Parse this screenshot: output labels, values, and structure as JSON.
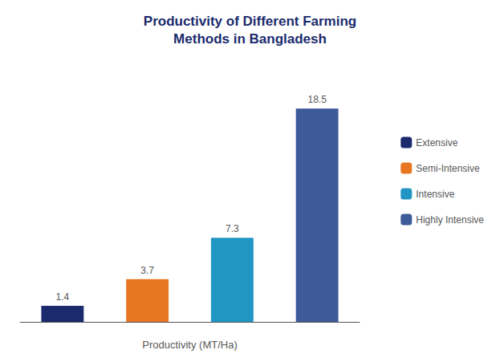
{
  "chart_data": {
    "type": "bar",
    "title": "Productivity of Different Farming\nMethods in Bangladesh",
    "categories": [
      "Extensive",
      "Semi-Intensive",
      "Intensive",
      "Highly Intensive"
    ],
    "values": [
      1.4,
      3.7,
      7.3,
      18.5
    ],
    "colors": [
      "#1a2a6c",
      "#e87722",
      "#2196c4",
      "#3d5a99"
    ],
    "xlabel": "Productivity (MT/Ha)",
    "ylim": [
      0,
      22
    ],
    "data_labels": true,
    "tick_labels": false,
    "grid": false,
    "legend": "right"
  }
}
